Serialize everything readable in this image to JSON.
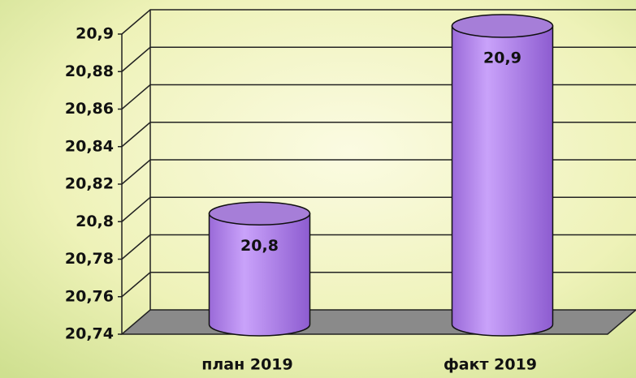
{
  "chart_data": {
    "type": "bar",
    "categories": [
      "план 2019",
      "факт 2019"
    ],
    "values": [
      20.8,
      20.9
    ],
    "value_labels": [
      "20,8",
      "20,9"
    ],
    "color": "#b98cf0",
    "ylim": [
      20.74,
      20.9
    ],
    "yticks": [
      {
        "value": 20.74,
        "label": "20,74"
      },
      {
        "value": 20.76,
        "label": "20,76"
      },
      {
        "value": 20.78,
        "label": "20,78"
      },
      {
        "value": 20.8,
        "label": "20,8"
      },
      {
        "value": 20.82,
        "label": "20,82"
      },
      {
        "value": 20.84,
        "label": "20,84"
      },
      {
        "value": 20.86,
        "label": "20,86"
      },
      {
        "value": 20.88,
        "label": "20,88"
      },
      {
        "value": 20.9,
        "label": "20,9"
      }
    ],
    "grid": true
  }
}
